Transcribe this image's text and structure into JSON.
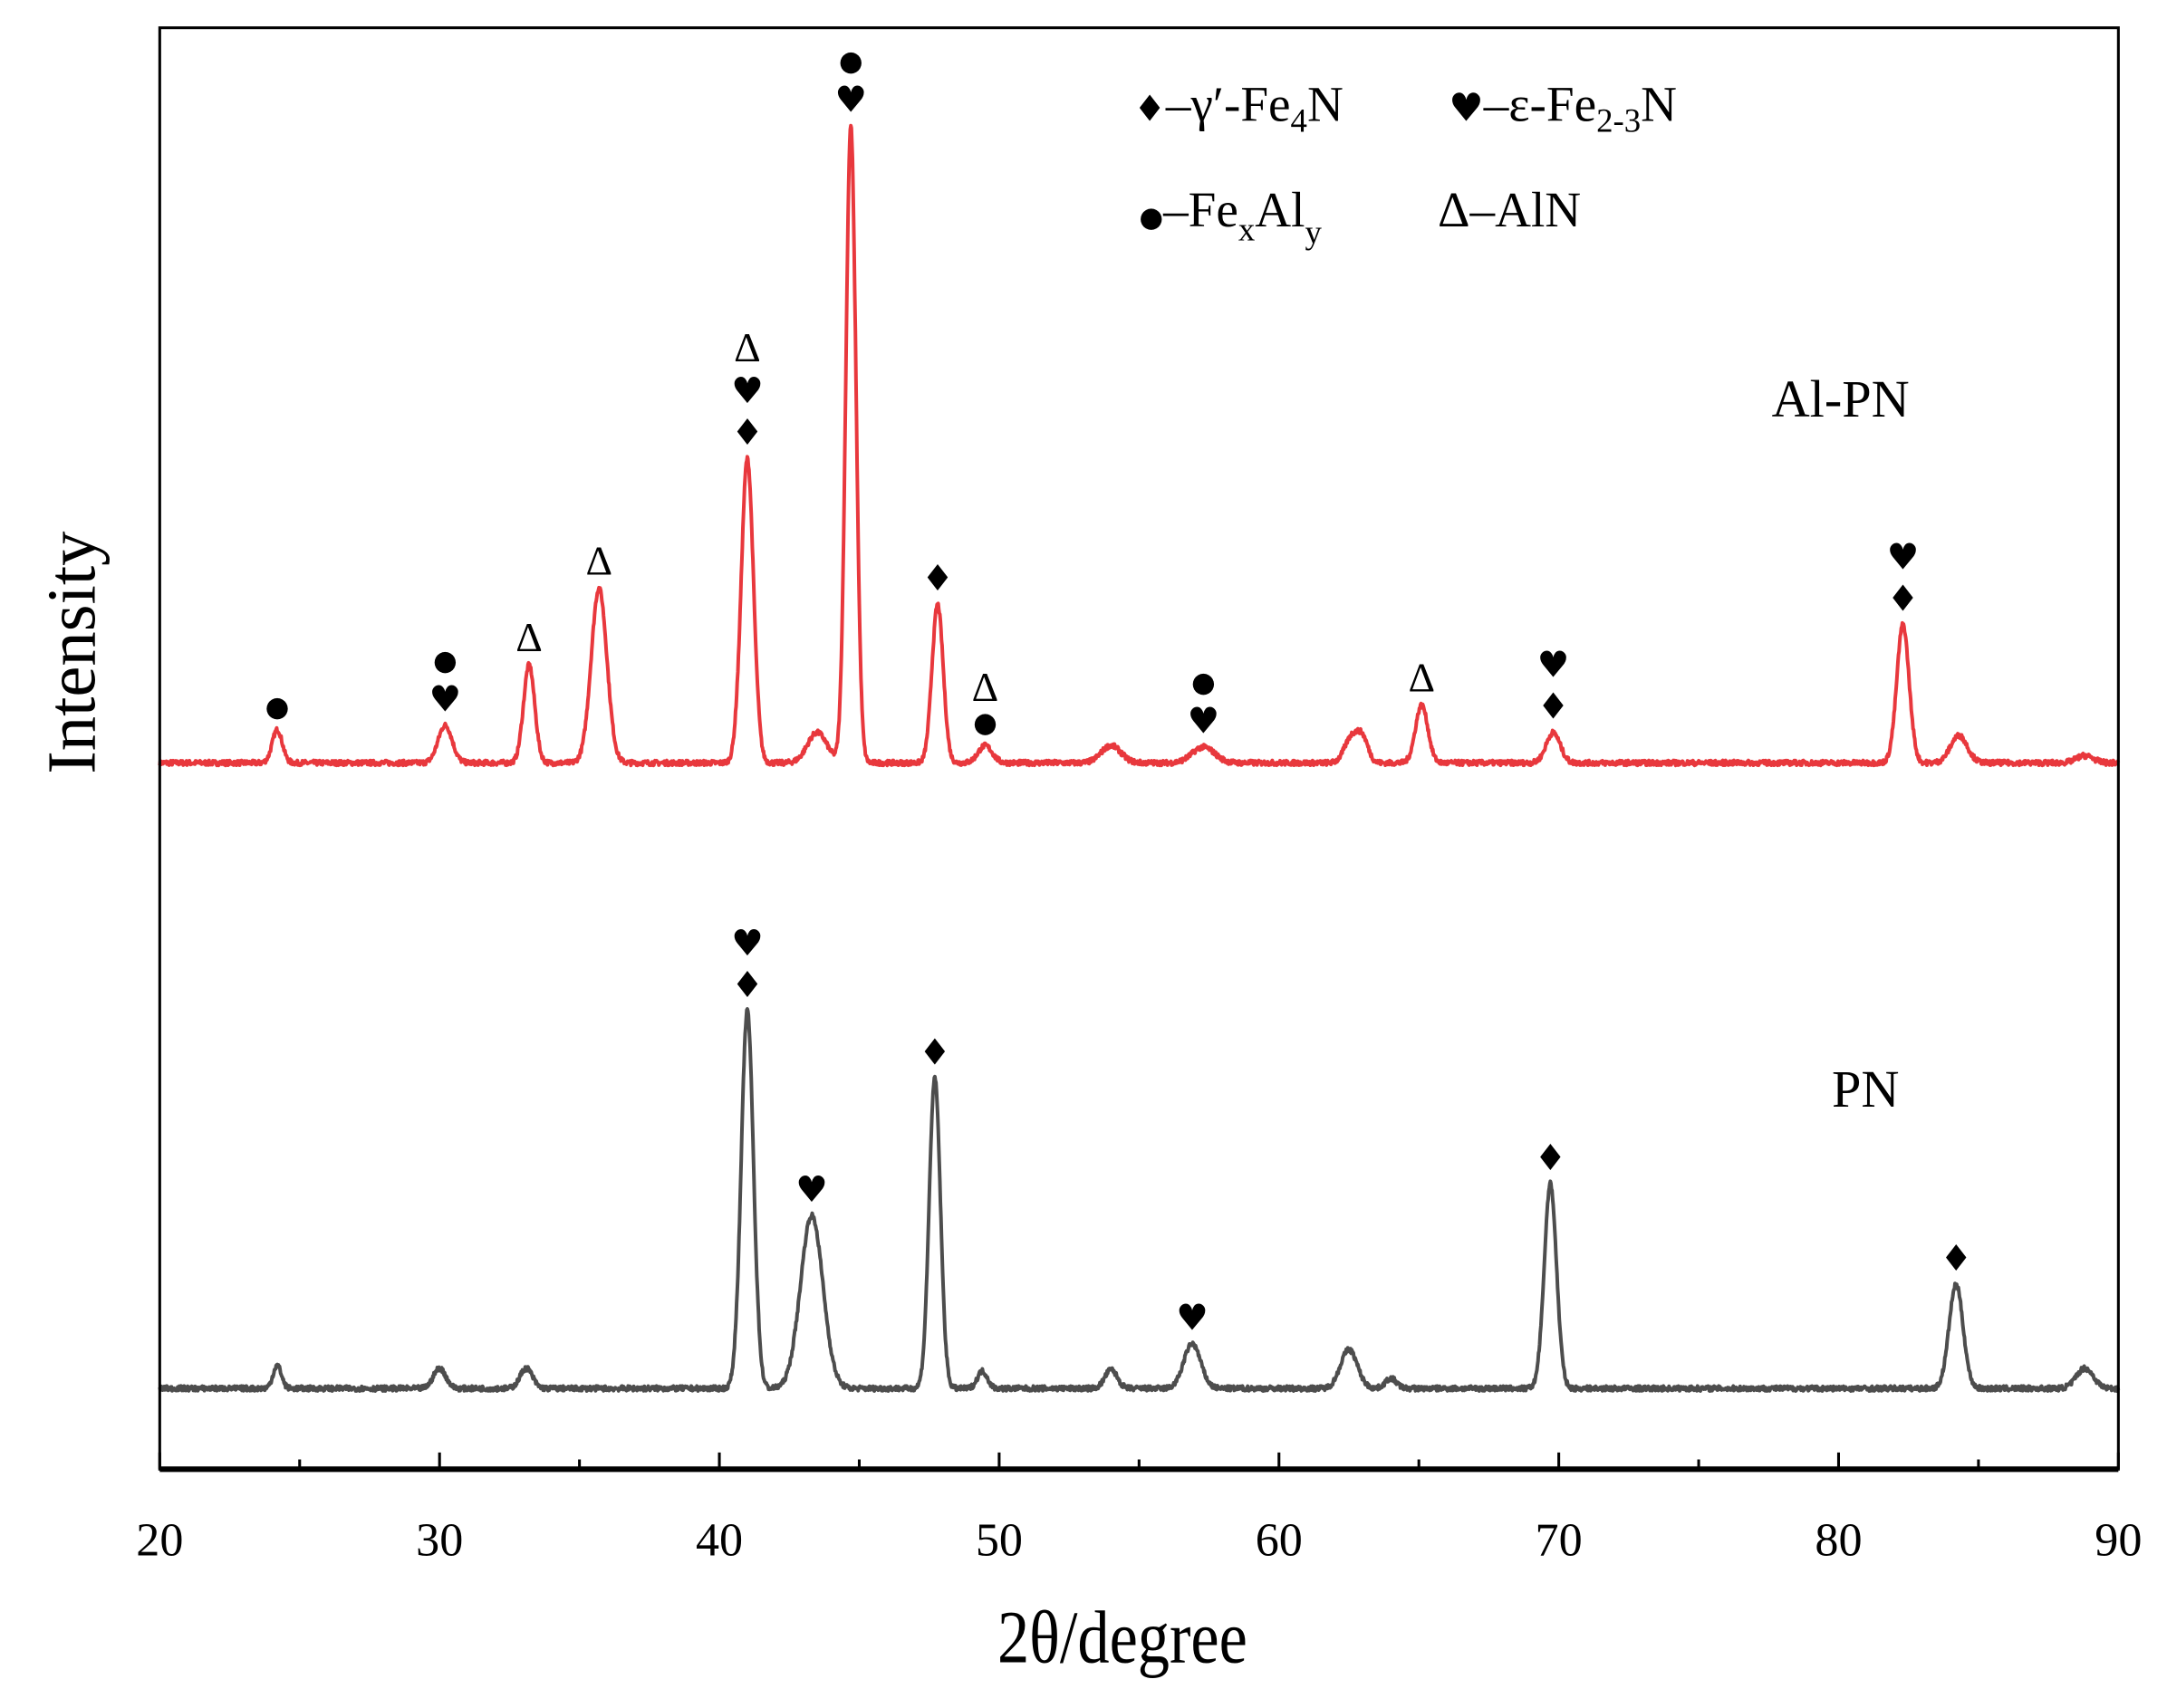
{
  "chart_data": {
    "type": "line",
    "title": "",
    "xlabel": "2θ/degree",
    "ylabel": "Intensity",
    "xlim": [
      20,
      90
    ],
    "ylim": [
      0,
      100
    ],
    "x_ticks": [
      20,
      30,
      40,
      50,
      60,
      70,
      80,
      90
    ],
    "x_minor_ticks": [
      25,
      35,
      45,
      55,
      65,
      75,
      85
    ],
    "y_ticks_shown": false,
    "grid": false,
    "legend": {
      "placement": "top-right",
      "entries": [
        {
          "symbol": "♦",
          "prefix": "–γ′-Fe",
          "sub": "4",
          "suffix": "N"
        },
        {
          "symbol": "♥",
          "prefix": "–ε-Fe",
          "sub": "2-3",
          "suffix": "N"
        },
        {
          "symbol": "●",
          "prefix": "–Fe",
          "sub": "x",
          "mid": "Al",
          "sub2": "y",
          "suffix": ""
        },
        {
          "symbol": "Δ",
          "prefix": "–AlN",
          "sub": "",
          "suffix": ""
        }
      ]
    },
    "symbols": {
      "diamond": "♦",
      "heart": "♥",
      "dot": "●",
      "triangle": "Δ"
    },
    "series": [
      {
        "name": "Al-PN",
        "color": "#e8383d",
        "baseline": 49.0,
        "peaks": [
          {
            "x": 24.2,
            "h": 2.3,
            "w": 0.18
          },
          {
            "x": 30.2,
            "h": 2.6,
            "w": 0.25
          },
          {
            "x": 33.2,
            "h": 6.8,
            "w": 0.2
          },
          {
            "x": 35.7,
            "h": 12.1,
            "w": 0.28
          },
          {
            "x": 41.0,
            "h": 21.1,
            "w": 0.22
          },
          {
            "x": 43.5,
            "h": 2.1,
            "w": 0.35
          },
          {
            "x": 44.7,
            "h": 44.2,
            "w": 0.18
          },
          {
            "x": 47.8,
            "h": 11.0,
            "w": 0.2
          },
          {
            "x": 49.5,
            "h": 1.2,
            "w": 0.25
          },
          {
            "x": 54.0,
            "h": 1.2,
            "w": 0.35
          },
          {
            "x": 57.3,
            "h": 1.1,
            "w": 0.4
          },
          {
            "x": 62.6,
            "h": 1.8,
            "w": 0.25
          },
          {
            "x": 63.0,
            "h": 1.5,
            "w": 0.2
          },
          {
            "x": 65.1,
            "h": 4.0,
            "w": 0.22
          },
          {
            "x": 69.8,
            "h": 2.1,
            "w": 0.25
          },
          {
            "x": 82.3,
            "h": 9.6,
            "w": 0.22
          },
          {
            "x": 84.3,
            "h": 1.9,
            "w": 0.3
          },
          {
            "x": 88.8,
            "h": 0.5,
            "w": 0.3
          }
        ],
        "annotations": [
          {
            "x": 24.2,
            "symbols": [
              "dot"
            ]
          },
          {
            "x": 30.2,
            "symbols": [
              "heart",
              "dot"
            ]
          },
          {
            "x": 33.2,
            "symbols": [
              "triangle"
            ]
          },
          {
            "x": 35.7,
            "symbols": [
              "triangle"
            ]
          },
          {
            "x": 41.0,
            "symbols": [
              "diamond",
              "heart",
              "triangle"
            ]
          },
          {
            "x": 44.7,
            "symbols": [
              "heart",
              "dot"
            ]
          },
          {
            "x": 47.8,
            "symbols": [
              "diamond"
            ]
          },
          {
            "x": 49.5,
            "symbols": [
              "dot",
              "triangle"
            ]
          },
          {
            "x": 57.3,
            "symbols": [
              "heart",
              "dot"
            ]
          },
          {
            "x": 65.1,
            "symbols": [
              "triangle"
            ]
          },
          {
            "x": 69.8,
            "symbols": [
              "diamond",
              "heart"
            ]
          },
          {
            "x": 82.3,
            "symbols": [
              "diamond",
              "heart"
            ]
          }
        ],
        "label": "Al-PN"
      },
      {
        "name": "PN",
        "color": "#4d4d4d",
        "baseline": 5.6,
        "peaks": [
          {
            "x": 24.2,
            "h": 1.6,
            "w": 0.15
          },
          {
            "x": 30.0,
            "h": 1.4,
            "w": 0.22
          },
          {
            "x": 33.1,
            "h": 1.4,
            "w": 0.22
          },
          {
            "x": 41.0,
            "h": 26.2,
            "w": 0.22
          },
          {
            "x": 43.3,
            "h": 12.0,
            "w": 0.4
          },
          {
            "x": 47.7,
            "h": 21.5,
            "w": 0.2
          },
          {
            "x": 49.4,
            "h": 1.2,
            "w": 0.18
          },
          {
            "x": 54.0,
            "h": 1.3,
            "w": 0.22
          },
          {
            "x": 56.9,
            "h": 3.1,
            "w": 0.3
          },
          {
            "x": 62.5,
            "h": 2.7,
            "w": 0.3
          },
          {
            "x": 64.0,
            "h": 0.7,
            "w": 0.2
          },
          {
            "x": 69.7,
            "h": 14.2,
            "w": 0.22
          },
          {
            "x": 84.2,
            "h": 7.2,
            "w": 0.25
          },
          {
            "x": 88.8,
            "h": 1.4,
            "w": 0.3
          }
        ],
        "annotations": [
          {
            "x": 41.0,
            "symbols": [
              "diamond",
              "heart"
            ]
          },
          {
            "x": 43.3,
            "symbols": [
              "heart"
            ]
          },
          {
            "x": 47.7,
            "symbols": [
              "diamond"
            ]
          },
          {
            "x": 56.9,
            "symbols": [
              "heart"
            ]
          },
          {
            "x": 69.7,
            "symbols": [
              "diamond"
            ]
          },
          {
            "x": 84.2,
            "symbols": [
              "diamond"
            ]
          }
        ],
        "label": "PN"
      }
    ]
  }
}
